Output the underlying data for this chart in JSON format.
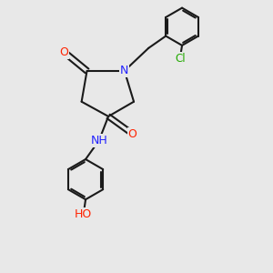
{
  "background_color": "#e8e8e8",
  "bond_color": "#1a1a1a",
  "bond_width": 1.5,
  "atom_colors": {
    "O": "#ff2200",
    "N": "#2222ff",
    "Cl": "#22aa00",
    "C": "#1a1a1a",
    "H": "#1a1a1a"
  },
  "font_size": 8.5,
  "fig_width": 3.0,
  "fig_height": 3.0,
  "dpi": 100
}
